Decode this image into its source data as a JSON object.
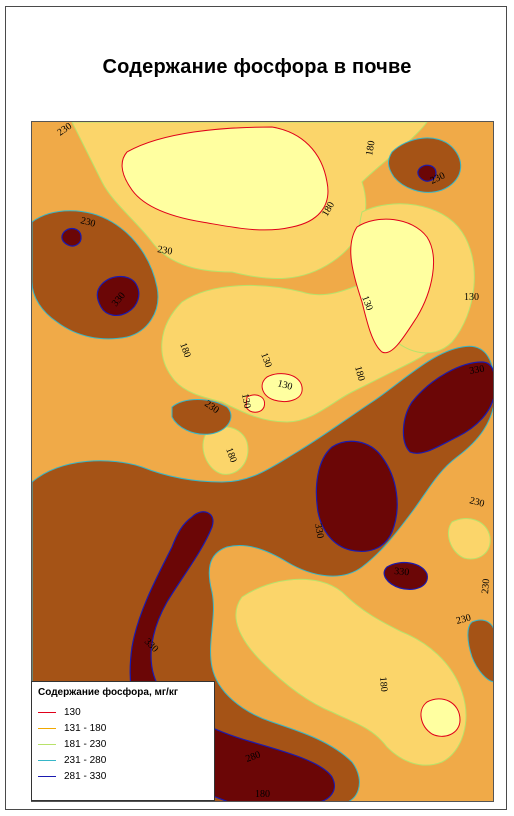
{
  "map": {
    "title": "Содержание фосфора в почве",
    "legend": {
      "title": "Содержание фосфора, мг/кг",
      "items": [
        {
          "label": "130",
          "color": "#e0001a"
        },
        {
          "label": "131 - 180",
          "color": "#f0a800"
        },
        {
          "label": "181 - 230",
          "color": "#b8e26a"
        },
        {
          "label": "231 - 280",
          "color": "#36b6c8"
        },
        {
          "label": "281 - 330",
          "color": "#1a1ab0"
        }
      ]
    },
    "zone_colors": {
      "below_130": "#ffffa0",
      "z131_180": "#fbd56a",
      "z181_230": "#f0aa48",
      "z231_280": "#a55316",
      "z281_330": "#6b0606"
    },
    "contour_labels": [
      "230",
      "180",
      "230",
      "180",
      "130",
      "230",
      "230",
      "330",
      "130",
      "180",
      "130",
      "330",
      "130",
      "180",
      "230",
      "130",
      "180",
      "330",
      "230",
      "330",
      "230",
      "330",
      "230",
      "180",
      "280",
      "180"
    ]
  }
}
